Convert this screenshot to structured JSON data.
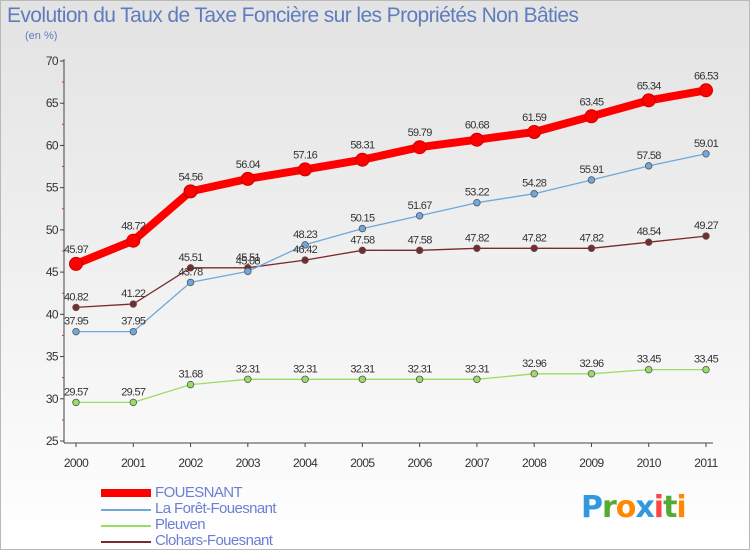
{
  "title": "Evolution du Taux de Taxe Foncière sur les Propriétés Non Bâties",
  "subtitle": "(en %)",
  "chart_data": {
    "type": "line",
    "title": "Evolution du Taux de Taxe Foncière sur les Propriétés Non Bâties",
    "ylabel": "(en %)",
    "xlabel": "",
    "ylim": [
      25,
      70
    ],
    "yticks": [
      "25",
      "30",
      "35",
      "40",
      "45",
      "50",
      "55",
      "60",
      "65",
      "70"
    ],
    "x": [
      "2000",
      "2001",
      "2002",
      "2003",
      "2004",
      "2005",
      "2006",
      "2007",
      "2008",
      "2009",
      "2010",
      "2011"
    ],
    "grid": false,
    "legend_position": "bottom-left",
    "series": [
      {
        "name": "FOUESNANT",
        "color": "#ff0000",
        "values": [
          45.97,
          48.72,
          54.56,
          56.04,
          57.16,
          58.31,
          59.79,
          60.68,
          61.59,
          63.45,
          65.34,
          66.53
        ],
        "labels": [
          "45.97",
          "48.72",
          "54.56",
          "56.04",
          "57.16",
          "58.31",
          "59.79",
          "60.68",
          "61.59",
          "63.45",
          "65.34",
          "66.53"
        ]
      },
      {
        "name": "La Forêt-Fouesnant",
        "color": "#6fa8dc",
        "values": [
          37.95,
          37.95,
          43.78,
          45.08,
          48.23,
          50.15,
          51.67,
          53.22,
          54.28,
          55.91,
          57.58,
          59.01
        ],
        "labels": [
          "37.95",
          "37.95",
          "43.78",
          "45.08",
          "48.23",
          "50.15",
          "51.67",
          "53.22",
          "54.28",
          "55.91",
          "57.58",
          "59.01"
        ]
      },
      {
        "name": "Pleuven",
        "color": "#99dd66",
        "values": [
          29.57,
          29.57,
          31.68,
          32.31,
          32.31,
          32.31,
          32.31,
          32.31,
          32.96,
          32.96,
          33.45,
          33.45
        ],
        "labels": [
          "29.57",
          "29.57",
          "31.68",
          "32.31",
          "32.31",
          "32.31",
          "32.31",
          "32.31",
          "32.96",
          "32.96",
          "33.45",
          "33.45"
        ]
      },
      {
        "name": "Clohars-Fouesnant",
        "color": "#7a2a2a",
        "values": [
          40.82,
          41.22,
          45.51,
          45.51,
          46.42,
          47.58,
          47.58,
          47.82,
          47.82,
          47.82,
          48.54,
          49.27
        ],
        "labels": [
          "40.82",
          "41.22",
          "45.51",
          "45.51",
          "46.42",
          "47.58",
          "47.58",
          "47.82",
          "47.82",
          "47.82",
          "48.54",
          "49.27"
        ]
      }
    ]
  },
  "legend": [
    {
      "label": "FOUESNANT",
      "color": "#ff0000"
    },
    {
      "label": "La Forêt-Fouesnant",
      "color": "#6fa8dc"
    },
    {
      "label": "Pleuven",
      "color": "#99dd66"
    },
    {
      "label": "Clohars-Fouesnant",
      "color": "#7a2a2a"
    }
  ],
  "logo": {
    "text": "Proxiti",
    "letters": [
      "P",
      "r",
      "o",
      "x",
      "i",
      "t",
      "i"
    ],
    "colors": [
      "#3399dd",
      "#55aa33",
      "#ff8800",
      "#3399dd",
      "#ff4444",
      "#55aa33",
      "#ff8800"
    ]
  }
}
